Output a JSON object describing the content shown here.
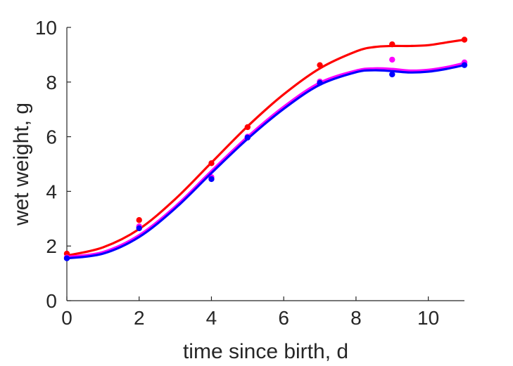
{
  "chart_data": {
    "type": "scatter",
    "title": "",
    "xlabel": "time since birth, d",
    "ylabel": "wet weight, g",
    "xlim": [
      0,
      11
    ],
    "ylim": [
      0,
      10
    ],
    "xticks": [
      0,
      2,
      4,
      6,
      8,
      10
    ],
    "yticks": [
      0,
      2,
      4,
      6,
      8,
      10
    ],
    "grid": false,
    "box": false,
    "legend": "none",
    "series": [
      {
        "color": "#ff0000",
        "points": {
          "x": [
            0,
            2,
            4,
            5,
            7,
            9,
            11
          ],
          "y": [
            1.72,
            2.95,
            5.03,
            6.35,
            8.62,
            9.38,
            9.55
          ]
        },
        "curve": {
          "x": [
            0,
            1,
            2,
            3,
            4,
            5,
            6,
            7,
            8,
            8.5,
            9,
            9.5,
            10,
            10.5,
            11
          ],
          "y": [
            1.65,
            1.95,
            2.62,
            3.72,
            5.05,
            6.38,
            7.55,
            8.5,
            9.12,
            9.28,
            9.32,
            9.32,
            9.35,
            9.45,
            9.55
          ]
        }
      },
      {
        "color": "#ff00ff",
        "points": {
          "x": [
            0,
            2,
            4,
            5,
            7,
            9,
            11
          ],
          "y": [
            1.58,
            2.72,
            4.52,
            6.0,
            8.02,
            8.82,
            8.72
          ]
        },
        "curve": {
          "x": [
            0,
            1,
            2,
            3,
            4,
            5,
            6,
            7,
            8,
            8.5,
            9,
            9.5,
            10,
            10.5,
            11
          ],
          "y": [
            1.6,
            1.78,
            2.4,
            3.45,
            4.75,
            6.0,
            7.1,
            7.98,
            8.42,
            8.5,
            8.48,
            8.42,
            8.45,
            8.55,
            8.7
          ]
        }
      },
      {
        "color": "#0000ff",
        "points": {
          "x": [
            0,
            2,
            4,
            5,
            7,
            9,
            11
          ],
          "y": [
            1.55,
            2.65,
            4.45,
            5.97,
            7.97,
            8.28,
            8.62
          ]
        },
        "curve": {
          "x": [
            0,
            1,
            2,
            3,
            4,
            5,
            6,
            7,
            8,
            8.5,
            9,
            9.5,
            10,
            10.5,
            11
          ],
          "y": [
            1.55,
            1.72,
            2.33,
            3.38,
            4.67,
            5.92,
            7.02,
            7.9,
            8.36,
            8.43,
            8.4,
            8.35,
            8.38,
            8.48,
            8.62
          ]
        }
      }
    ]
  }
}
